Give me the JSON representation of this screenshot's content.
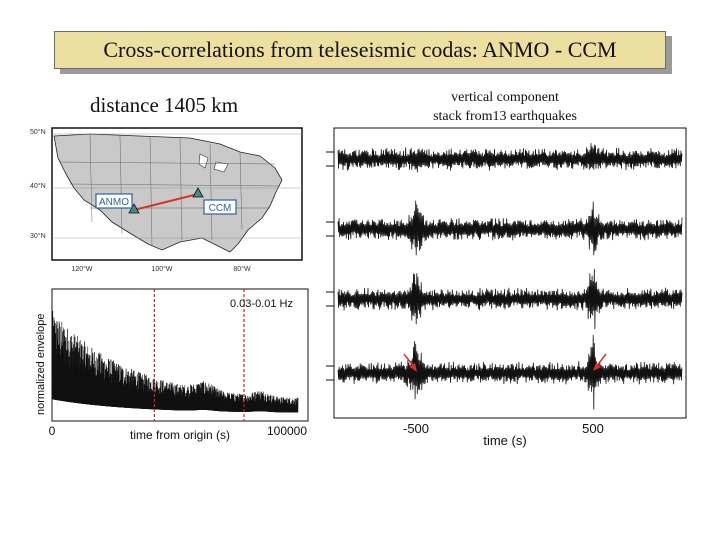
{
  "slide": {
    "title": "Cross-correlations from teleseismic codas: ANMO - CCM",
    "distance": "distance 1405 km",
    "vertical_line1": "vertical component",
    "vertical_line2": "stack from13 earthquakes"
  },
  "map": {
    "lat_labels": [
      "50°N",
      "40°N",
      "30°N"
    ],
    "lon_labels": [
      "120°W",
      "100°W",
      "80°W"
    ],
    "stations": [
      "ANMO",
      "CCM"
    ],
    "colors": {
      "land": "#c9c9c9",
      "water": "#ffffff",
      "path": "#d6332a",
      "station": "#3e8f8a",
      "label_box": "#2f5ea8"
    }
  },
  "chart_data": [
    {
      "type": "line",
      "title": "",
      "annotation": "0.03-0.01 Hz",
      "xlabel": "time from origin (s)",
      "ylabel": "normalized envelope",
      "x_tick_labels": [
        "0",
        "100000"
      ],
      "xlim": [
        0,
        100000
      ],
      "markers_x": [
        40000,
        75000
      ],
      "marker_color": "#cc2222"
    },
    {
      "type": "line",
      "title": "",
      "xlabel": "time (s)",
      "x_tick_labels": [
        "-500",
        "500"
      ],
      "traces": 4,
      "arrow_color": "#d6332a"
    }
  ]
}
